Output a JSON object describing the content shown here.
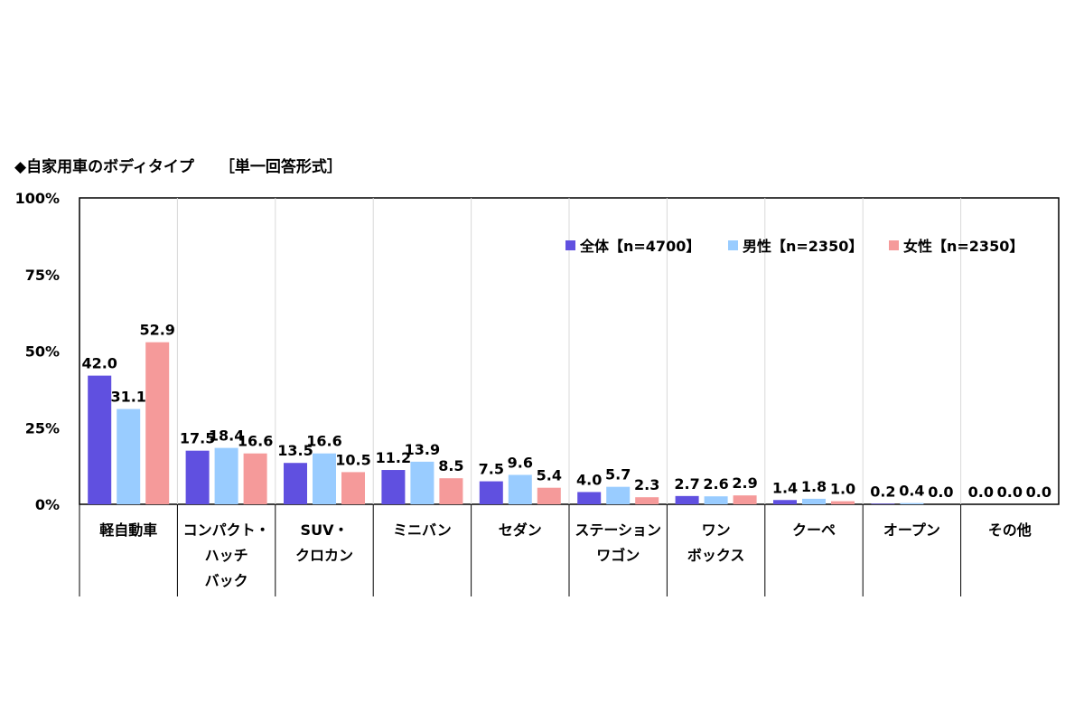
{
  "title": "◆自家用車のボディタイプ",
  "note": "［単一回答形式］",
  "chart_data": {
    "type": "bar",
    "categories": [
      [
        "軽自動車"
      ],
      [
        "コンパクト・",
        "ハッチ",
        "バック"
      ],
      [
        "SUV・",
        "クロカン"
      ],
      [
        "ミニバン"
      ],
      [
        "セダン"
      ],
      [
        "ステーション",
        "ワゴン"
      ],
      [
        "ワン",
        "ボックス"
      ],
      [
        "クーペ"
      ],
      [
        "オープン"
      ],
      [
        "その他"
      ]
    ],
    "series": [
      {
        "name": "全体【n=4700】",
        "color": "#6050E0",
        "values": [
          42.0,
          17.5,
          13.5,
          11.2,
          7.5,
          4.0,
          2.7,
          1.4,
          0.2,
          0.0
        ],
        "labels": [
          "42.0",
          "17.5",
          "13.5",
          "11.2",
          "7.5",
          "4.0",
          "2.7",
          "1.4",
          "0.2",
          "0.0"
        ]
      },
      {
        "name": "男性【n=2350】",
        "color": "#99CCFF",
        "values": [
          31.1,
          18.4,
          16.6,
          13.9,
          9.6,
          5.7,
          2.6,
          1.8,
          0.4,
          0.0
        ],
        "labels": [
          "31.1",
          "18.4",
          "16.6",
          "13.9",
          "9.6",
          "5.7",
          "2.6",
          "1.8",
          "0.4",
          "0.0"
        ]
      },
      {
        "name": "女性【n=2350】",
        "color": "#F59A9A",
        "values": [
          52.9,
          16.6,
          10.5,
          8.5,
          5.4,
          2.3,
          2.9,
          1.0,
          0.0,
          0.0
        ],
        "labels": [
          "52.9",
          "16.6",
          "10.5",
          "8.5",
          "5.4",
          "2.3",
          "2.9",
          "1.0",
          "0.0",
          "0.0"
        ]
      }
    ],
    "yticks": [
      "0%",
      "25%",
      "50%",
      "75%",
      "100%"
    ],
    "ylim": [
      0,
      100
    ],
    "grid": "vertical separators only",
    "legend": "top-right"
  }
}
